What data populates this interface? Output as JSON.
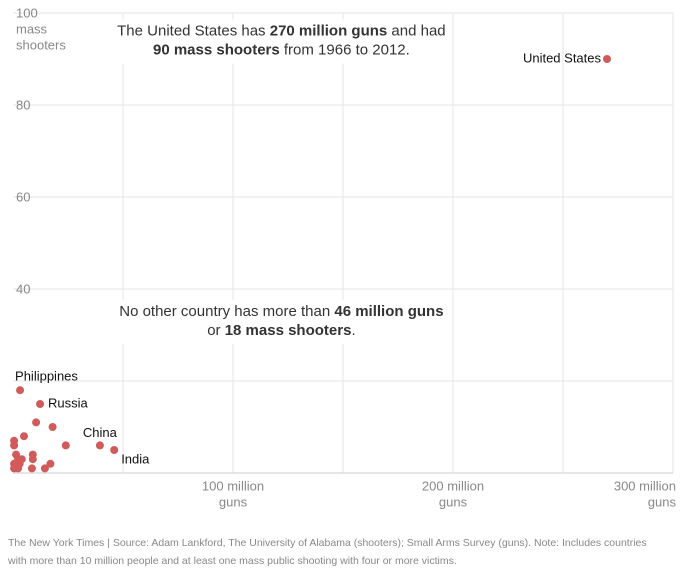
{
  "chart_data": {
    "type": "scatter",
    "color": "#d15b5b",
    "ylabel_lines": [
      "mass",
      "shooters"
    ],
    "xunit": "guns",
    "xlim": [
      0,
      300
    ],
    "ylim": [
      0,
      100
    ],
    "xticks": [
      {
        "value": 100,
        "label": "100 million"
      },
      {
        "value": 200,
        "label": "200 million"
      },
      {
        "value": 300,
        "label": "300 million"
      }
    ],
    "yticks": [
      40,
      60,
      80,
      100
    ],
    "xgrid": [
      50,
      100,
      150,
      200,
      250,
      300
    ],
    "ygrid": [
      20,
      40,
      60,
      80,
      100
    ],
    "points": [
      {
        "label": "United States",
        "x": 270,
        "y": 90
      },
      {
        "label": "Philippines",
        "x": 3.2,
        "y": 18
      },
      {
        "label": "Russia",
        "x": 12.3,
        "y": 15
      },
      {
        "label": "China",
        "x": 39.5,
        "y": 6
      },
      {
        "label": "India",
        "x": 46,
        "y": 5
      },
      {
        "label": null,
        "x": 10.5,
        "y": 11
      },
      {
        "label": null,
        "x": 18,
        "y": 10
      },
      {
        "label": null,
        "x": 24,
        "y": 6
      },
      {
        "label": null,
        "x": 5,
        "y": 8
      },
      {
        "label": null,
        "x": 0.5,
        "y": 7
      },
      {
        "label": null,
        "x": 0.5,
        "y": 6
      },
      {
        "label": null,
        "x": 1.4,
        "y": 4
      },
      {
        "label": null,
        "x": 2.3,
        "y": 3
      },
      {
        "label": null,
        "x": 4,
        "y": 3
      },
      {
        "label": null,
        "x": 9,
        "y": 4
      },
      {
        "label": null,
        "x": 9,
        "y": 3
      },
      {
        "label": null,
        "x": 17,
        "y": 2
      },
      {
        "label": null,
        "x": 14.5,
        "y": 1
      },
      {
        "label": null,
        "x": 8.6,
        "y": 1
      },
      {
        "label": null,
        "x": 2.3,
        "y": 1
      },
      {
        "label": null,
        "x": 0.5,
        "y": 2
      },
      {
        "label": null,
        "x": 0.5,
        "y": 1
      },
      {
        "label": null,
        "x": 3,
        "y": 2
      }
    ],
    "annotations": [
      {
        "x": 122,
        "y": 96,
        "lines": [
          [
            {
              "text": "The United States has ",
              "bold": false
            },
            {
              "text": "270 million guns",
              "bold": true
            },
            {
              "text": " and had",
              "bold": false
            }
          ],
          [
            {
              "text": "90 mass shooters",
              "bold": true
            },
            {
              "text": " from 1966 to 2012.",
              "bold": false
            }
          ]
        ]
      },
      {
        "x": 122,
        "y": 35,
        "lines": [
          [
            {
              "text": "No other country has more than ",
              "bold": false
            },
            {
              "text": "46 million guns",
              "bold": true
            }
          ],
          [
            {
              "text": "or ",
              "bold": false
            },
            {
              "text": "18 mass shooters",
              "bold": true
            },
            {
              "text": ".",
              "bold": false
            }
          ]
        ]
      }
    ],
    "footer_lines": [
      "The New York Times  |  Source: Adam Lankford, The University of Alabama (shooters); Small Arms Survey (guns). Note: Includes countries",
      "with more than 10 million people and at least one mass public shooting with four or more victims."
    ]
  }
}
